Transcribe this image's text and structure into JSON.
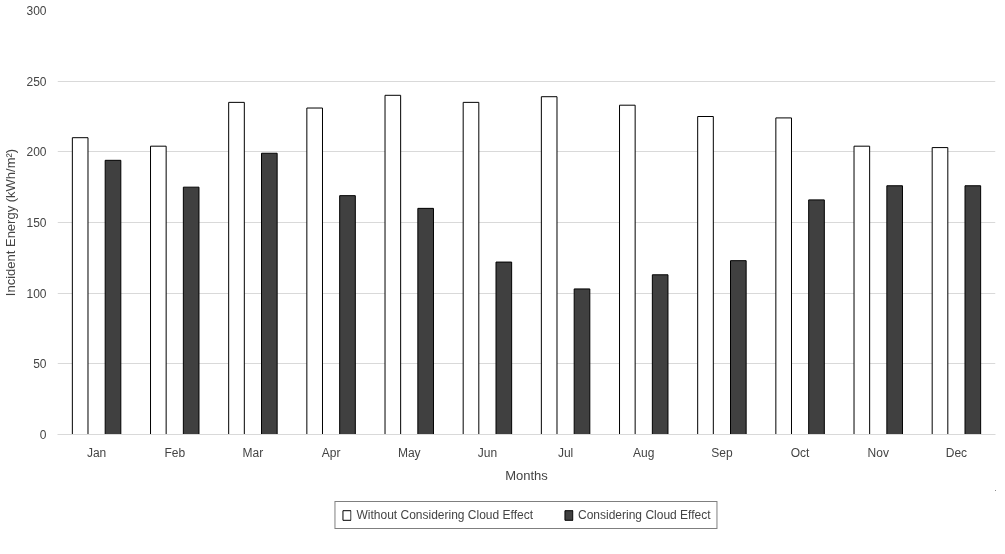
{
  "chart_data": {
    "type": "bar",
    "xlabel": "Months",
    "ylabel": "Incident Energy (kWh/m²)",
    "categories": [
      "Jan",
      "Feb",
      "Mar",
      "Apr",
      "May",
      "Jun",
      "Jul",
      "Aug",
      "Sep",
      "Oct",
      "Nov",
      "Dec"
    ],
    "series": [
      {
        "name": "Without Considering Cloud Effect",
        "color": "#ffffff",
        "values": [
          210,
          204,
          235,
          231,
          240,
          235,
          239,
          233,
          225,
          224,
          204,
          203
        ]
      },
      {
        "name": "Considering Cloud Effect",
        "color": "#404040",
        "values": [
          194,
          175,
          199,
          169,
          160,
          122,
          103,
          113,
          123,
          166,
          176,
          176
        ]
      }
    ],
    "ylim": [
      0,
      300
    ],
    "yticks": [
      0,
      50,
      100,
      150,
      200,
      250,
      300
    ],
    "grid": "y",
    "legend": "bottom"
  }
}
